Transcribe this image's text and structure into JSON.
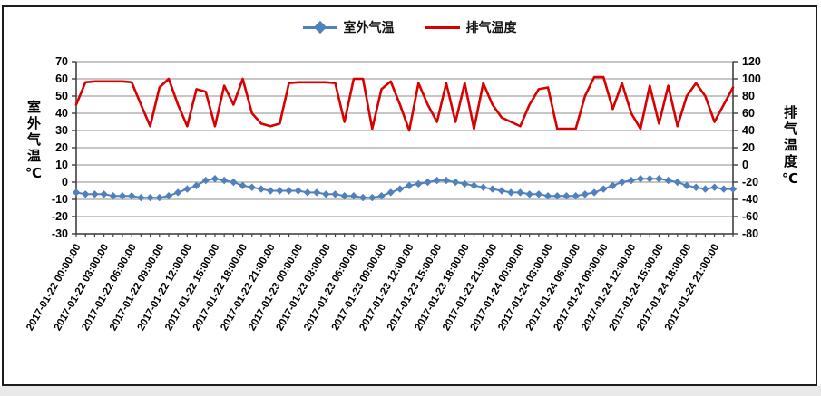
{
  "chart_data": {
    "type": "line",
    "title": "",
    "grid": true,
    "legend_position": "top",
    "left_axis": {
      "title": "室外气温℃",
      "min": -30,
      "max": 70,
      "step": 10
    },
    "right_axis": {
      "title": "排气温度℃",
      "min": -80,
      "max": 120,
      "step": 20
    },
    "x": {
      "start": "2017-01-22 00:00:00",
      "step_hours": 1,
      "count": 72,
      "label_every": 3,
      "labels": [
        "2017-01-22 00:00:00",
        "2017-01-22 03:00:00",
        "2017-01-22 06:00:00",
        "2017-01-22 09:00:00",
        "2017-01-22 12:00:00",
        "2017-01-22 15:00:00",
        "2017-01-22 18:00:00",
        "2017-01-22 21:00:00",
        "2017-01-23 00:00:00",
        "2017-01-23 03:00:00",
        "2017-01-23 06:00:00",
        "2017-01-23 09:00:00",
        "2017-01-23 12:00:00",
        "2017-01-23 15:00:00",
        "2017-01-23 18:00:00",
        "2017-01-23 21:00:00",
        "2017-01-24 00:00:00",
        "2017-01-24 03:00:00",
        "2017-01-24 06:00:00",
        "2017-01-24 09:00:00",
        "2017-01-24 12:00:00",
        "2017-01-24 15:00:00",
        "2017-01-24 18:00:00",
        "2017-01-24 21:00:00"
      ]
    },
    "series": [
      {
        "name": "室外气温",
        "axis": "left",
        "color": "#4f81bd",
        "marker": "diamond",
        "values": [
          -6,
          -7,
          -7,
          -7,
          -8,
          -8,
          -8,
          -9,
          -9,
          -9,
          -8,
          -6,
          -4,
          -2,
          1,
          2,
          1,
          0,
          -2,
          -3,
          -4,
          -5,
          -5,
          -5,
          -5,
          -6,
          -6,
          -7,
          -7,
          -8,
          -8,
          -9,
          -9,
          -8,
          -6,
          -4,
          -2,
          -1,
          0,
          1,
          1,
          0,
          -1,
          -2,
          -3,
          -4,
          -5,
          -6,
          -6,
          -7,
          -7,
          -8,
          -8,
          -8,
          -8,
          -7,
          -6,
          -4,
          -2,
          0,
          1,
          2,
          2,
          2,
          1,
          0,
          -2,
          -3,
          -4,
          -3,
          -4,
          -4
        ]
      },
      {
        "name": "排气温度",
        "axis": "right",
        "color": "#d90000",
        "marker": "none",
        "values": [
          70,
          96,
          97,
          97,
          97,
          97,
          96,
          70,
          45,
          90,
          100,
          70,
          45,
          88,
          85,
          45,
          92,
          70,
          100,
          60,
          48,
          45,
          48,
          95,
          96,
          96,
          96,
          96,
          95,
          50,
          100,
          100,
          42,
          88,
          97,
          70,
          40,
          95,
          70,
          50,
          95,
          50,
          95,
          42,
          95,
          70,
          55,
          50,
          45,
          70,
          88,
          90,
          42,
          42,
          42,
          80,
          102,
          102,
          65,
          95,
          60,
          42,
          92,
          48,
          92,
          45,
          80,
          95,
          80,
          50,
          70,
          90
        ]
      }
    ],
    "colors": {
      "grid": "#a3a3a3",
      "axis": "#3f3f3f",
      "text": "#000000"
    }
  }
}
